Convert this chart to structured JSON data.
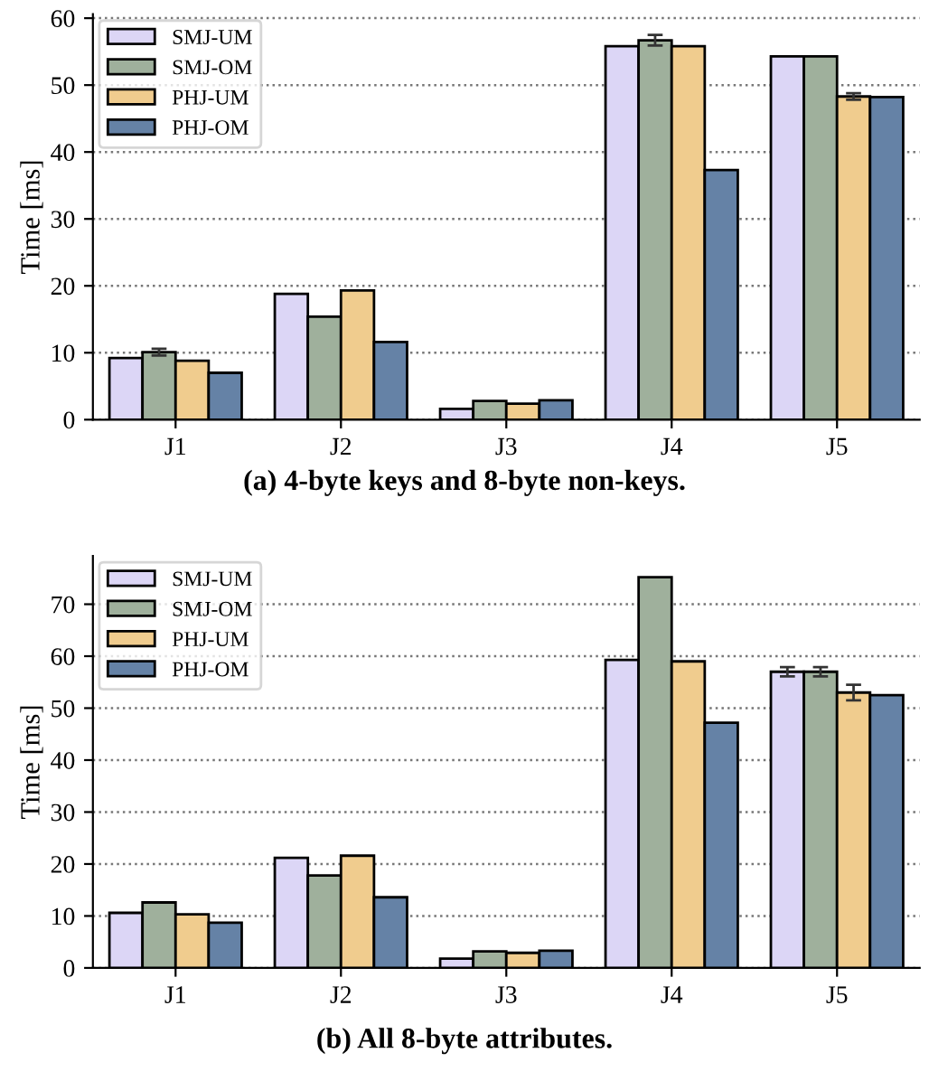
{
  "chart_data": [
    {
      "type": "bar",
      "title": "(a) 4-byte keys and 8-byte non-keys.",
      "ylabel": "Time [ms]",
      "categories": [
        "J1",
        "J2",
        "J3",
        "J4",
        "J5"
      ],
      "ylim": [
        0,
        60.6
      ],
      "yticks": [
        0,
        10,
        20,
        30,
        40,
        50,
        60
      ],
      "grid": "y",
      "legend": "top left",
      "series": [
        {
          "name": "SMJ-UM",
          "color": "#dcd6f6",
          "values": [
            9.2,
            18.8,
            1.6,
            55.8,
            54.3
          ]
        },
        {
          "name": "SMJ-OM",
          "color": "#9fb09c",
          "values": [
            10.1,
            15.4,
            2.8,
            56.7,
            54.3
          ],
          "errors": [
            0.5,
            null,
            null,
            0.8,
            null
          ]
        },
        {
          "name": "PHJ-UM",
          "color": "#f0cc8e",
          "values": [
            8.8,
            19.3,
            2.4,
            55.8,
            48.3
          ],
          "errors": [
            null,
            null,
            null,
            null,
            0.5
          ]
        },
        {
          "name": "PHJ-OM",
          "color": "#6582a6",
          "values": [
            7.0,
            11.6,
            2.9,
            37.3,
            48.2
          ]
        }
      ]
    },
    {
      "type": "bar",
      "title": "(b) All 8-byte attributes.",
      "ylabel": "Time [ms]",
      "categories": [
        "J1",
        "J2",
        "J3",
        "J4",
        "J5"
      ],
      "ylim": [
        0,
        79.3
      ],
      "yticks": [
        0,
        10,
        20,
        30,
        40,
        50,
        60,
        70
      ],
      "grid": "y",
      "legend": "top left",
      "series": [
        {
          "name": "SMJ-UM",
          "color": "#dcd6f6",
          "values": [
            10.6,
            21.2,
            1.8,
            59.3,
            57.0
          ],
          "errors": [
            null,
            null,
            null,
            null,
            0.9
          ]
        },
        {
          "name": "SMJ-OM",
          "color": "#9fb09c",
          "values": [
            12.6,
            17.8,
            3.2,
            75.2,
            57.0
          ],
          "errors": [
            null,
            null,
            null,
            null,
            0.9
          ]
        },
        {
          "name": "PHJ-UM",
          "color": "#f0cc8e",
          "values": [
            10.3,
            21.6,
            2.9,
            59.0,
            53.0
          ],
          "errors": [
            null,
            null,
            null,
            null,
            1.5
          ]
        },
        {
          "name": "PHJ-OM",
          "color": "#6582a6",
          "values": [
            8.7,
            13.6,
            3.3,
            47.2,
            52.5
          ]
        }
      ]
    }
  ]
}
